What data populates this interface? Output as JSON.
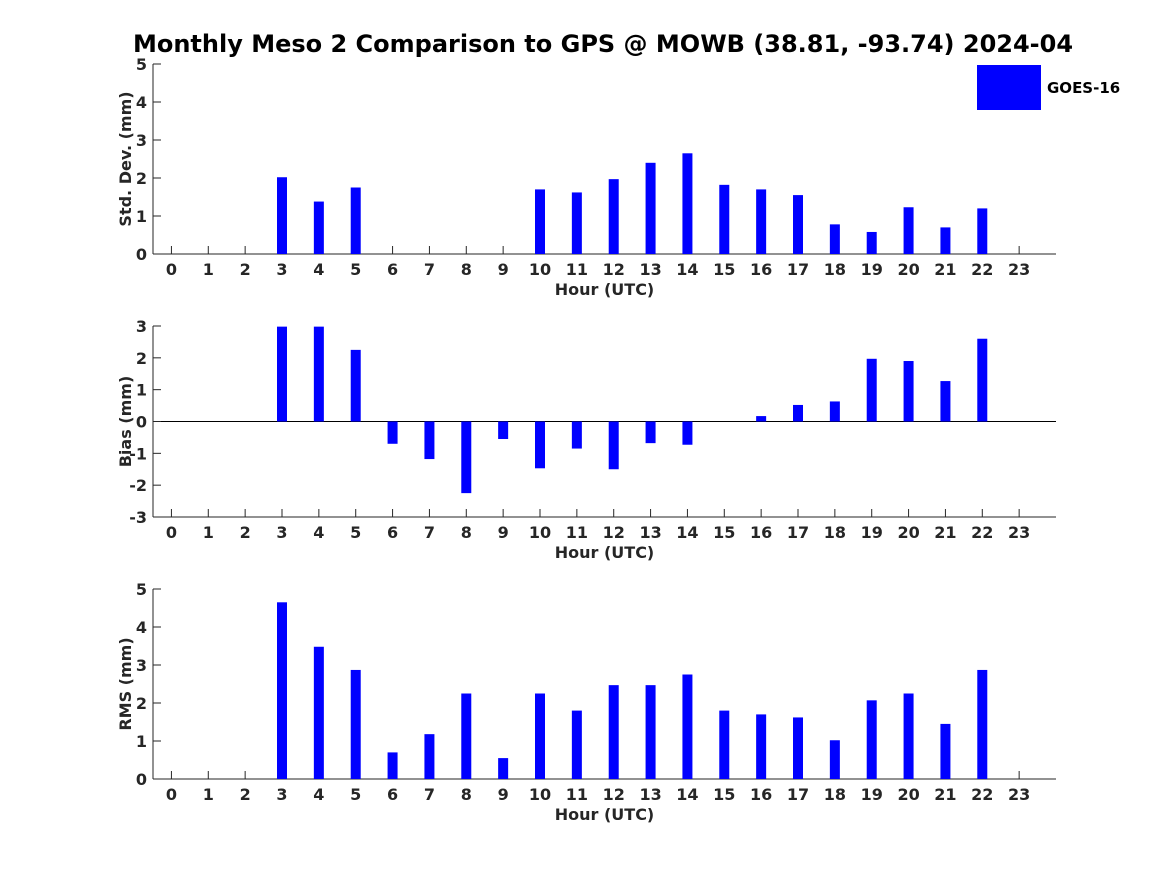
{
  "title": "Monthly Meso 2 Comparison to GPS @ MOWB (38.81, -93.74) 2024-04",
  "legend": {
    "label": "GOES-16",
    "color": "#0000ff",
    "placement": "top-right"
  },
  "chart_data": [
    {
      "type": "bar",
      "categories": [
        "0",
        "1",
        "2",
        "3",
        "4",
        "5",
        "6",
        "7",
        "8",
        "9",
        "10",
        "11",
        "12",
        "13",
        "14",
        "15",
        "16",
        "17",
        "18",
        "19",
        "20",
        "21",
        "22",
        "23"
      ],
      "series": [
        {
          "name": "GOES-16",
          "values": [
            0,
            0,
            0,
            2.02,
            1.38,
            1.75,
            0,
            0,
            0,
            0,
            1.7,
            1.62,
            1.97,
            2.4,
            2.65,
            1.82,
            1.7,
            1.55,
            0.78,
            0.58,
            1.23,
            0.7,
            1.2,
            0
          ]
        }
      ],
      "xlabel": "Hour (UTC)",
      "ylabel": "Std. Dev. (mm)",
      "ylim": [
        0,
        5
      ],
      "yticks": [
        "0",
        "1",
        "2",
        "3",
        "4",
        "5"
      ],
      "grid": false
    },
    {
      "type": "bar",
      "categories": [
        "0",
        "1",
        "2",
        "3",
        "4",
        "5",
        "6",
        "7",
        "8",
        "9",
        "10",
        "11",
        "12",
        "13",
        "14",
        "15",
        "16",
        "17",
        "18",
        "19",
        "20",
        "21",
        "22",
        "23"
      ],
      "series": [
        {
          "name": "GOES-16",
          "values": [
            0,
            0,
            0,
            2.98,
            2.98,
            2.25,
            -0.7,
            -1.18,
            -2.25,
            -0.55,
            -1.47,
            -0.85,
            -1.5,
            -0.68,
            -0.73,
            0,
            0.17,
            0.52,
            0.63,
            1.97,
            1.9,
            1.27,
            2.6,
            0
          ]
        }
      ],
      "xlabel": "Hour (UTC)",
      "ylabel": "Bias (mm)",
      "ylim": [
        -3,
        3
      ],
      "yticks": [
        "-3",
        "-2",
        "-1",
        "0",
        "1",
        "2",
        "3"
      ],
      "grid": false
    },
    {
      "type": "bar",
      "categories": [
        "0",
        "1",
        "2",
        "3",
        "4",
        "5",
        "6",
        "7",
        "8",
        "9",
        "10",
        "11",
        "12",
        "13",
        "14",
        "15",
        "16",
        "17",
        "18",
        "19",
        "20",
        "21",
        "22",
        "23"
      ],
      "series": [
        {
          "name": "GOES-16",
          "values": [
            0,
            0,
            0,
            4.65,
            3.48,
            2.87,
            0.7,
            1.18,
            2.25,
            0.55,
            2.25,
            1.8,
            2.47,
            2.47,
            2.75,
            1.8,
            1.7,
            1.62,
            1.02,
            2.07,
            2.25,
            1.45,
            2.87,
            0
          ]
        }
      ],
      "xlabel": "Hour (UTC)",
      "ylabel": "RMS (mm)",
      "ylim": [
        0,
        5
      ],
      "yticks": [
        "0",
        "1",
        "2",
        "3",
        "4",
        "5"
      ],
      "grid": false
    }
  ]
}
